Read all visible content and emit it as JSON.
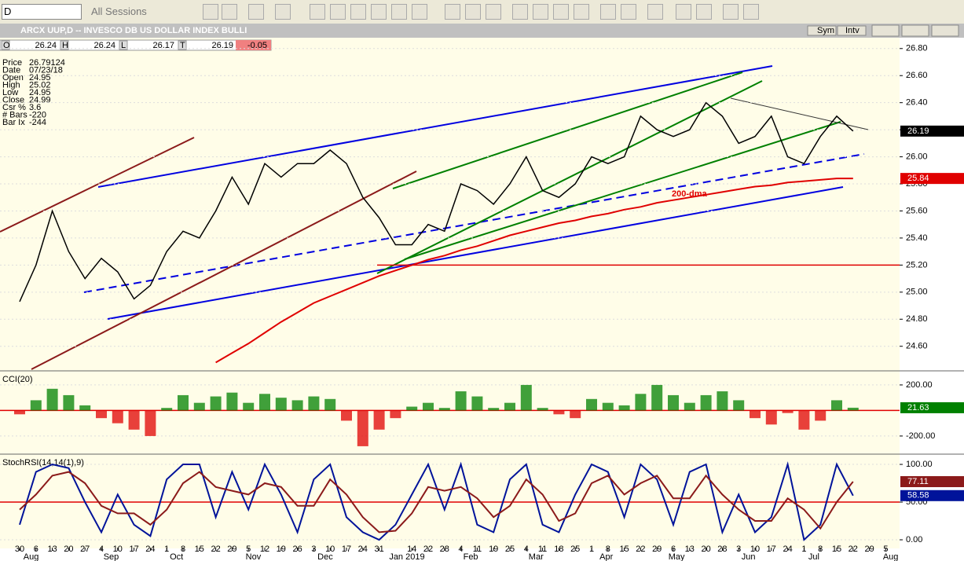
{
  "toolbar": {
    "symbol": "D",
    "sessions": "All Sessions"
  },
  "header": {
    "title": "ARCX UUP,D -- INVESCO DB US DOLLAR INDEX BULLI",
    "sym": "Sym",
    "intv": "Intv",
    "ohlc": [
      [
        "O",
        "26.24"
      ],
      [
        "H",
        "26.24"
      ],
      [
        "L",
        "26.17"
      ],
      [
        "T",
        "26.19"
      ]
    ],
    "change": "-0.05"
  },
  "info": [
    [
      "Price",
      "26.79124"
    ],
    [
      "Date",
      "07/23/18"
    ],
    [
      "Open",
      "24.95"
    ],
    [
      "High",
      "25.02"
    ],
    [
      "Low",
      "24.95"
    ],
    [
      "Close",
      "24.99"
    ],
    [
      "Csr %",
      "3.6"
    ],
    [
      "# Bars",
      "-220"
    ],
    [
      "Bar Ix",
      "-244"
    ]
  ],
  "chart_data": [
    {
      "type": "line",
      "annotation": "200-dma",
      "ylim": [
        24.43,
        26.88
      ],
      "yticks": [
        {
          "value": 24.6,
          "label": "24.60"
        },
        {
          "value": 24.8,
          "label": "24.80"
        },
        {
          "value": 25,
          "label": "25.00"
        },
        {
          "value": 25.2,
          "label": "25.20"
        },
        {
          "value": 25.4,
          "label": "25.40"
        },
        {
          "value": 25.6,
          "label": "25.60"
        },
        {
          "value": 25.8,
          "label": "25.80"
        },
        {
          "value": 26,
          "label": "26.00"
        },
        {
          "value": 26.2,
          "label": "26.20"
        },
        {
          "value": 26.4,
          "label": "26.40"
        },
        {
          "value": 26.6,
          "label": "26.60"
        },
        {
          "value": 26.8,
          "label": "26.80"
        }
      ],
      "hline": {
        "value": 25.2,
        "color": "#e00000"
      },
      "series": [
        {
          "color": "#000000",
          "values": [
            24.93,
            25.2,
            25.6,
            25.3,
            25.1,
            25.25,
            25.15,
            24.95,
            25.05,
            25.3,
            25.45,
            25.4,
            25.6,
            25.85,
            25.65,
            25.95,
            25.85,
            25.95,
            25.95,
            26.05,
            25.95,
            25.7,
            25.55,
            25.35,
            25.35,
            25.5,
            25.45,
            25.8,
            25.75,
            25.65,
            25.8,
            26.0,
            25.75,
            25.7,
            25.8,
            26.0,
            25.95,
            26.0,
            26.3,
            26.2,
            26.15,
            26.2,
            26.4,
            26.3,
            26.1,
            26.15,
            26.3,
            26.0,
            25.95,
            26.15,
            26.3,
            26.19,
            null,
            null
          ],
          "last_label": "26.19"
        },
        {
          "color": "#e00000",
          "values": [
            null,
            null,
            null,
            null,
            null,
            null,
            null,
            null,
            null,
            null,
            null,
            null,
            24.48,
            24.55,
            24.62,
            24.7,
            24.78,
            24.85,
            24.92,
            24.97,
            25.02,
            25.07,
            25.12,
            25.16,
            25.2,
            25.24,
            25.27,
            25.31,
            25.34,
            25.38,
            25.42,
            25.45,
            25.48,
            25.51,
            25.53,
            25.56,
            25.58,
            25.61,
            25.63,
            25.66,
            25.68,
            25.7,
            25.72,
            25.74,
            25.76,
            25.78,
            25.79,
            25.81,
            25.82,
            25.83,
            25.84,
            25.84,
            null,
            null
          ],
          "last_label": "25.84"
        }
      ]
    },
    {
      "type": "bar",
      "title": "CCI(20)",
      "ylim": [
        -342,
        298
      ],
      "yticks": [
        {
          "value": -200,
          "label": "-200.00"
        },
        {
          "value": 200,
          "label": "200.00"
        }
      ],
      "hline": {
        "value": 0,
        "color": "#e00000"
      },
      "series": [
        {
          "color": "#008000",
          "negative_color": "#e00000",
          "values": [
            -30,
            80,
            170,
            120,
            40,
            -60,
            -100,
            -150,
            -200,
            20,
            120,
            60,
            110,
            140,
            60,
            130,
            100,
            80,
            110,
            90,
            -80,
            -280,
            -150,
            -60,
            30,
            60,
            20,
            150,
            110,
            20,
            60,
            200,
            20,
            -30,
            -60,
            90,
            60,
            40,
            130,
            200,
            120,
            60,
            120,
            150,
            80,
            -60,
            -110,
            -20,
            -150,
            -80,
            80,
            21.63,
            null,
            null
          ],
          "last_label": "21.63"
        }
      ]
    },
    {
      "type": "line",
      "title": "StochRSI(14,14(1),9)",
      "ylim": [
        -10.4,
        111.5
      ],
      "yticks": [
        {
          "value": 0,
          "label": "0.00"
        },
        {
          "value": 50,
          "label": "50.00"
        },
        {
          "value": 100,
          "label": "100.00"
        }
      ],
      "hline": {
        "value": 50,
        "color": "#e00000"
      },
      "categories": [
        "30",
        "6",
        "13",
        "20",
        "27",
        "4",
        "10",
        "17",
        "24",
        "1",
        "8",
        "15",
        "22",
        "29",
        "5",
        "12",
        "19",
        "26",
        "3",
        "10",
        "17",
        "24",
        "31",
        null,
        "14",
        "22",
        "28",
        "4",
        "11",
        "19",
        "25",
        "4",
        "11",
        "18",
        "25",
        "1",
        "8",
        "15",
        "22",
        "29",
        "6",
        "13",
        "20",
        "28",
        "3",
        "10",
        "17",
        "24",
        "1",
        "8",
        "15",
        "22",
        "29",
        "5"
      ],
      "months": [
        "Aug",
        "Sep",
        "Oct",
        "Nov",
        "Dec",
        "Jan 2019",
        "Feb",
        "Mar",
        "Apr",
        "May",
        "Jun",
        "Jul",
        "Aug"
      ],
      "series": [
        {
          "color": "#00139a",
          "values": [
            20,
            90,
            100,
            95,
            50,
            10,
            60,
            20,
            5,
            80,
            100,
            100,
            30,
            90,
            40,
            100,
            60,
            10,
            80,
            100,
            30,
            10,
            0,
            20,
            60,
            100,
            40,
            100,
            20,
            10,
            80,
            100,
            20,
            10,
            60,
            100,
            90,
            30,
            100,
            80,
            20,
            90,
            100,
            10,
            60,
            10,
            30,
            100,
            0,
            20,
            100,
            58.58,
            null,
            null
          ],
          "last_label": "58.58"
        },
        {
          "color": "#8b1a1a",
          "values": [
            40,
            60,
            85,
            90,
            75,
            45,
            35,
            35,
            20,
            40,
            75,
            90,
            70,
            65,
            60,
            75,
            70,
            45,
            45,
            80,
            60,
            30,
            10,
            12,
            35,
            70,
            65,
            70,
            55,
            30,
            45,
            80,
            60,
            25,
            35,
            75,
            85,
            60,
            75,
            85,
            55,
            55,
            85,
            60,
            40,
            25,
            25,
            55,
            40,
            15,
            50,
            77.11,
            null,
            null
          ],
          "last_label": "77.11"
        }
      ]
    }
  ]
}
